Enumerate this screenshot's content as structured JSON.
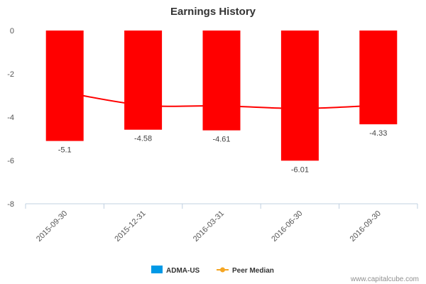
{
  "chart_data": {
    "type": "bar",
    "title": "Earnings History",
    "xlabel": "",
    "ylabel": "",
    "ylim": [
      -8,
      0
    ],
    "yticks": [
      0,
      -2,
      -4,
      -6,
      -8
    ],
    "categories": [
      "2015-09-30",
      "2015-12-31",
      "2016-03-31",
      "2016-06-30",
      "2016-09-30"
    ],
    "series": [
      {
        "name": "ADMA-US",
        "type": "bar",
        "values": [
          -5.1,
          -4.58,
          -4.61,
          -6.01,
          -4.33
        ],
        "data_labels": [
          "-5.1",
          "-4.58",
          "-4.61",
          "-6.01",
          "-4.33"
        ],
        "color": "#ff0000",
        "legend_color": "#0099e6"
      },
      {
        "name": "Peer Median",
        "type": "line",
        "values": [
          -2.85,
          -3.45,
          -3.48,
          -3.6,
          -3.45
        ],
        "color": "#ff0000",
        "legend_color": "#f5a623"
      }
    ],
    "grid": false,
    "legend_position": "bottom-center"
  },
  "credit": "www.capitalcube.com"
}
